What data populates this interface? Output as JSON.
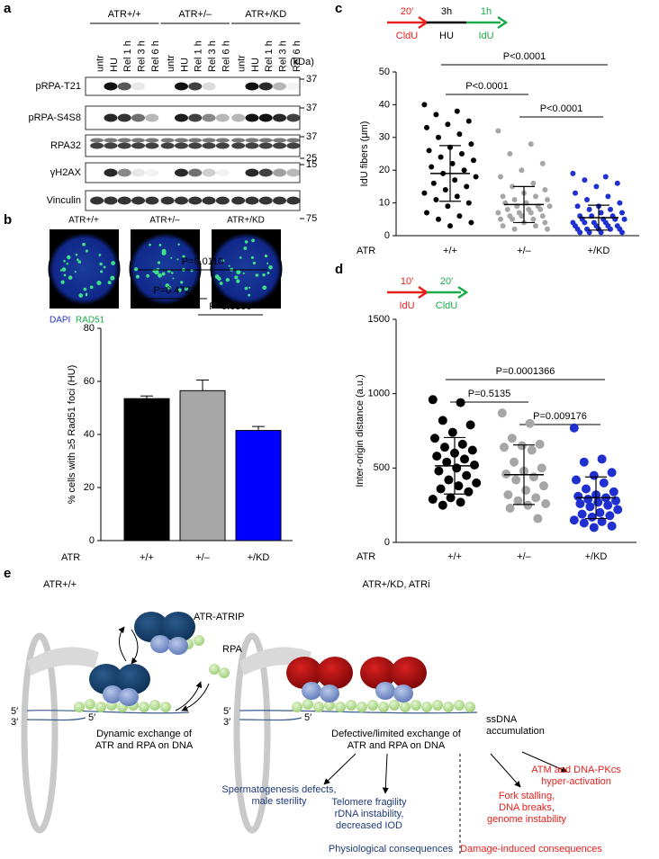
{
  "panel_labels": [
    "a",
    "b",
    "c",
    "d",
    "e"
  ],
  "blot": {
    "groups": [
      "ATR+/+",
      "ATR+/–",
      "ATR+/KD"
    ],
    "lanes": [
      "untr",
      "HU",
      "Rel 1 h",
      "Rel 3 h",
      "Rel 6 h"
    ],
    "unit": "(kDa)",
    "rows": [
      {
        "label": "pRPA-T21",
        "markers": [
          "37"
        ]
      },
      {
        "label": "pRPA-S4S8",
        "markers": [
          "37"
        ]
      },
      {
        "label": "RPA32",
        "markers": [
          "37",
          "25"
        ]
      },
      {
        "label": "γH2AX",
        "markers": [
          "15"
        ]
      },
      {
        "label": "Vinculin",
        "markers": [
          "75"
        ]
      }
    ]
  },
  "microscopy": {
    "labels": [
      "ATR+/+",
      "ATR+/–",
      "ATR+/KD"
    ],
    "legend": [
      "DAPI",
      "RAD51"
    ]
  },
  "chart_data": [
    {
      "type": "bar",
      "ylabel": "% cells with ≥5 Rad51 foci (HU)",
      "xlabel": "ATR",
      "categories": [
        "+/+",
        "+/–",
        "+/KD"
      ],
      "values": [
        53.5,
        56.5,
        41.5
      ],
      "errors": [
        1,
        4,
        1.5
      ],
      "colors": [
        "#000000",
        "#a6a6a6",
        "#0000ff"
      ],
      "ylim": [
        0,
        80
      ],
      "yticks": [
        0,
        20,
        40,
        60,
        80
      ],
      "annotations": [
        "P=0.4721",
        "P=0.0399",
        "P=0.0110"
      ]
    },
    {
      "type": "strip",
      "timeline": {
        "durations": [
          "20′",
          "3h",
          "1h"
        ],
        "labels": [
          "CldU",
          "HU",
          "IdU"
        ],
        "colors": [
          "#e8201c",
          "#000000",
          "#1aab4b"
        ]
      },
      "ylabel": "IdU fibers (μm)",
      "xlabel": "ATR",
      "categories": [
        "+/+",
        "+/–",
        "+/KD"
      ],
      "groups": [
        {
          "color": "#000000",
          "mean": 19,
          "sd": 8.5,
          "values": [
            40,
            38,
            37,
            35,
            34,
            33,
            31,
            30,
            28,
            27,
            26,
            25,
            24,
            23,
            22,
            21,
            20,
            19,
            18,
            17,
            16,
            15,
            14,
            13,
            12,
            11,
            10,
            9,
            7,
            6,
            5,
            4,
            3
          ]
        },
        {
          "color": "#a6a6a6",
          "mean": 9.5,
          "sd": 5.5,
          "values": [
            32,
            28,
            25,
            22,
            20,
            18,
            16,
            15,
            14,
            13,
            12,
            12,
            11,
            11,
            10,
            10,
            9,
            9,
            9,
            8,
            8,
            8,
            7,
            7,
            7,
            6,
            6,
            6,
            5,
            5,
            5,
            4,
            4,
            3,
            3,
            2,
            2
          ]
        },
        {
          "color": "#1f2fd0",
          "mean": 5.5,
          "sd": 3.8,
          "values": [
            19,
            18,
            17,
            16,
            15,
            13,
            12,
            11,
            10,
            9,
            9,
            8,
            8,
            7,
            7,
            6,
            6,
            6,
            5,
            5,
            5,
            5,
            4,
            4,
            4,
            4,
            3,
            3,
            3,
            3,
            2,
            2,
            2,
            2,
            2,
            1,
            1,
            1,
            1
          ]
        }
      ],
      "ylim": [
        0,
        50
      ],
      "yticks": [
        0,
        10,
        20,
        30,
        40,
        50
      ],
      "annotations": [
        "P<0.0001",
        "P<0.0001",
        "P<0.0001"
      ]
    },
    {
      "type": "strip",
      "timeline": {
        "durations": [
          "10′",
          "20′"
        ],
        "labels": [
          "IdU",
          "CldU"
        ],
        "colors": [
          "#e8201c",
          "#1aab4b"
        ]
      },
      "ylabel": "Inter-origin distance (a.u.)",
      "xlabel": "ATR",
      "categories": [
        "+/+",
        "+/–",
        "+/KD"
      ],
      "groups": [
        {
          "color": "#000000",
          "mean": 515,
          "sd": 190,
          "values": [
            960,
            940,
            820,
            790,
            740,
            700,
            660,
            640,
            620,
            600,
            580,
            560,
            540,
            520,
            500,
            480,
            450,
            420,
            400,
            380,
            360,
            340,
            300,
            290,
            270,
            250
          ]
        },
        {
          "color": "#a6a6a6",
          "mean": 455,
          "sd": 200,
          "values": [
            870,
            800,
            700,
            660,
            650,
            640,
            620,
            540,
            500,
            480,
            460,
            440,
            420,
            380,
            350,
            320,
            300,
            280,
            260,
            250,
            230,
            160
          ]
        },
        {
          "color": "#1f2fd0",
          "mean": 300,
          "sd": 140,
          "values": [
            770,
            560,
            540,
            470,
            450,
            420,
            400,
            360,
            340,
            320,
            310,
            300,
            290,
            280,
            270,
            260,
            250,
            240,
            220,
            200,
            190,
            180,
            170,
            150,
            140,
            130,
            110,
            100
          ]
        }
      ],
      "ylim": [
        0,
        1500
      ],
      "yticks": [
        0,
        500,
        1000,
        1500
      ],
      "annotations": [
        "P=0.5135",
        "P=0.009176",
        "P=0.0001366"
      ]
    }
  ],
  "model": {
    "left_title": "ATR+/+",
    "right_title": "ATR+/KD, ATRi",
    "atr_atrip": "ATR-ATRIP",
    "rpa": "RPA",
    "ends": [
      "5′",
      "3′",
      "5′"
    ],
    "left_caption": [
      "Dynamic exchange of",
      "ATR and RPA on DNA"
    ],
    "ssdna": [
      "ssDNA",
      "accumulation"
    ],
    "right_caption": [
      "Defective/limited exchange of",
      "ATR and RPA on DNA"
    ],
    "outcomes": [
      {
        "lines": [
          "Spermatogenesis defects,",
          "male sterility"
        ],
        "color": "#1f3a7a"
      },
      {
        "lines": [
          "Telomere fragility",
          "rDNA instability,",
          "decreased IOD"
        ],
        "color": "#1f3a7a"
      },
      {
        "lines": [
          "Fork stalling,",
          "DNA breaks,",
          "genome instability"
        ],
        "color": "#e8201c"
      },
      {
        "lines": [
          "ATM and DNA-PKcs",
          "hyper-activation"
        ],
        "color": "#e8201c"
      }
    ],
    "consequences": [
      {
        "text": "Physiological consequences",
        "color": "#1f3a7a"
      },
      {
        "text": "Damage-induced consequences",
        "color": "#e8201c"
      }
    ]
  }
}
